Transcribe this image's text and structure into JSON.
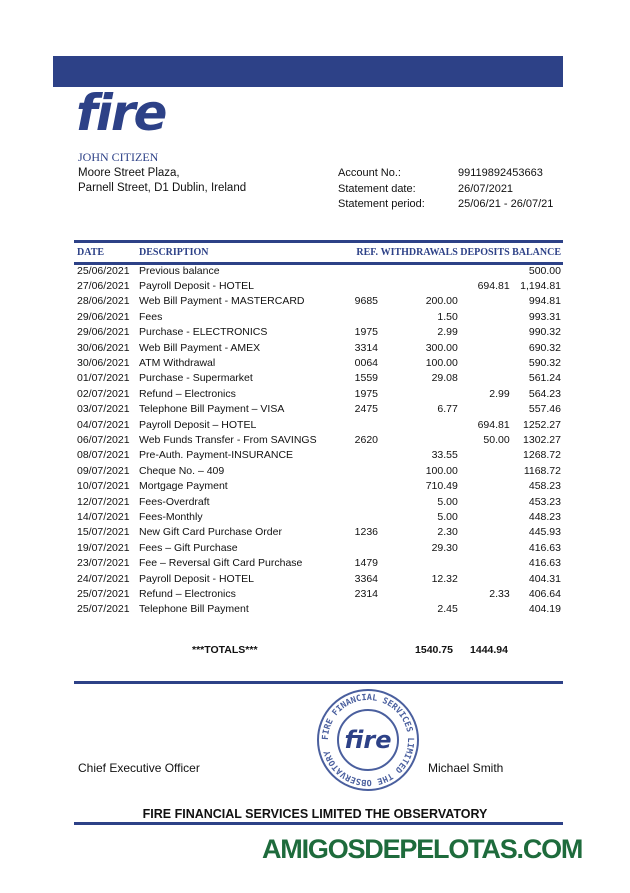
{
  "brand": {
    "logo": "fire",
    "color": "#2d4187"
  },
  "customer": {
    "name": "JOHN CITIZEN",
    "address1": "Moore Street Plaza,",
    "address2": "Parnell Street, D1 Dublin, Ireland"
  },
  "account": {
    "number_label": "Account No.:",
    "number": "99119892453663",
    "date_label": "Statement date:",
    "date": "26/07/2021",
    "period_label": "Statement period:",
    "period": "25/06/21 - 26/07/21"
  },
  "table": {
    "headers": [
      "DATE",
      "DESCRIPTION",
      "REF.",
      "WITHDRAWALS",
      "DEPOSITS",
      "BALANCE"
    ],
    "rows": [
      [
        "25/06/2021",
        "Previous balance",
        "",
        "",
        "",
        "500.00"
      ],
      [
        "27/06/2021",
        "Payroll Deposit - HOTEL",
        "",
        "",
        "694.81",
        "1,194.81"
      ],
      [
        "28/06/2021",
        "Web Bill Payment  - MASTERCARD",
        "9685",
        "200.00",
        "",
        "994.81"
      ],
      [
        "29/06/2021",
        "Fees",
        "",
        "1.50",
        "",
        "993.31"
      ],
      [
        "29/06/2021",
        "Purchase  - ELECTRONICS",
        "1975",
        "2.99",
        "",
        "990.32"
      ],
      [
        "30/06/2021",
        "Web Bill Payment - AMEX",
        "3314",
        "300.00",
        "",
        "690.32"
      ],
      [
        "30/06/2021",
        "ATM Withdrawal",
        "0064",
        "100.00",
        "",
        "590.32"
      ],
      [
        "01/07/2021",
        "Purchase - Supermarket",
        "1559",
        "29.08",
        "",
        "561.24"
      ],
      [
        "02/07/2021",
        "Refund – Electronics",
        "1975",
        "",
        "2.99",
        "564.23"
      ],
      [
        "03/07/2021",
        "Telephone Bill Payment – VISA",
        "2475",
        "6.77",
        "",
        "557.46"
      ],
      [
        "04/07/2021",
        "Payroll Deposit – HOTEL",
        "",
        "",
        "694.81",
        "1252.27"
      ],
      [
        "06/07/2021",
        "Web Funds Transfer - From SAVINGS",
        "2620",
        "",
        "50.00",
        "1302.27"
      ],
      [
        "08/07/2021",
        "Pre-Auth. Payment-INSURANCE",
        "",
        "33.55",
        "",
        "1268.72"
      ],
      [
        "09/07/2021",
        "Cheque No. – 409",
        "",
        "100.00",
        "",
        "1168.72"
      ],
      [
        "10/07/2021",
        "Mortgage Payment",
        "",
        "710.49",
        "",
        "458.23"
      ],
      [
        "12/07/2021",
        "Fees-Overdraft",
        "",
        "5.00",
        "",
        "453.23"
      ],
      [
        "14/07/2021",
        "Fees-Monthly",
        "",
        "5.00",
        "",
        "448.23"
      ],
      [
        "15/07/2021",
        "New Gift Card Purchase Order",
        "1236",
        "2.30",
        "",
        "445.93"
      ],
      [
        "19/07/2021",
        "Fees – Gift Purchase",
        "",
        "29.30",
        "",
        "416.63"
      ],
      [
        "23/07/2021",
        "Fee – Reversal Gift Card Purchase",
        "1479",
        "",
        "",
        "416.63"
      ],
      [
        "24/07/2021",
        "Payroll Deposit - HOTEL",
        "3364",
        "12.32",
        "",
        "404.31"
      ],
      [
        "25/07/2021",
        "Refund – Electronics",
        "2314",
        "",
        "2.33",
        "406.64"
      ],
      [
        "25/07/2021",
        "Telephone Bill Payment",
        "",
        "2.45",
        "",
        "404.19"
      ]
    ],
    "totals": {
      "label": "***TOTALS***",
      "withdrawals": "1540.75",
      "deposits": "1444.94"
    }
  },
  "signature": {
    "title": "Chief Executive Officer",
    "name": "Michael Smith",
    "stamp_text": "FIRE FINANCIAL SERVICES LIMITED THE OBSERVATORY",
    "stamp_logo": "fire"
  },
  "footer": "FIRE FINANCIAL SERVICES LIMITED THE OBSERVATORY",
  "watermark": "AMIGOSDEPELOTAS.COM"
}
